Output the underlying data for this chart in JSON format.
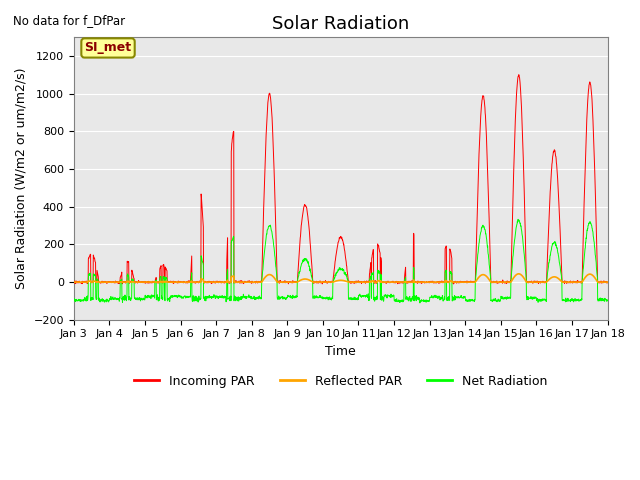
{
  "title": "Solar Radiation",
  "top_left_text": "No data for f_DfPar",
  "ylabel": "Solar Radiation (W/m2 or um/m2/s)",
  "xlabel": "Time",
  "ylim": [
    -200,
    1300
  ],
  "yticks": [
    -200,
    0,
    200,
    400,
    600,
    800,
    1000,
    1200
  ],
  "xtick_labels": [
    "Jan 3",
    "Jan 4",
    "Jan 5",
    "Jan 6",
    "Jan 7",
    "Jan 8",
    "Jan 9",
    "Jan 10",
    "Jan 11",
    "Jan 12",
    "Jan 13",
    "Jan 14",
    "Jan 15",
    "Jan 16",
    "Jan 17",
    "Jan 18"
  ],
  "legend_entries": [
    "Incoming PAR",
    "Reflected PAR",
    "Net Radiation"
  ],
  "plot_bg_color": "#e8e8e8",
  "annotation_box_text": "SI_met",
  "annotation_box_color": "#ffff99",
  "annotation_box_edge": "#888800",
  "title_fontsize": 13,
  "label_fontsize": 9,
  "tick_fontsize": 8,
  "days": 15,
  "n_per_day": 144,
  "incoming_peaks": [
    150,
    110,
    90,
    560,
    800,
    1000,
    410,
    240,
    210,
    275,
    200,
    990,
    1100,
    700,
    1060
  ],
  "net_night": -80,
  "net_scale": 0.3,
  "reflected_scale": 0.04
}
